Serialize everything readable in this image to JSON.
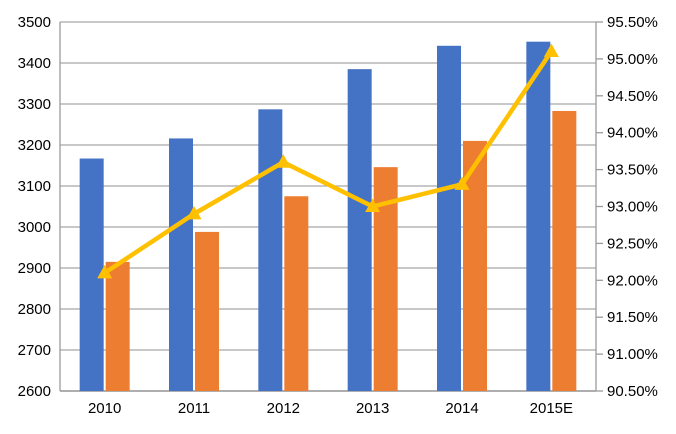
{
  "chart_data": {
    "type": "bar",
    "subtype": "combo-bar-line-dual-axis",
    "title": "",
    "xlabel": "",
    "ylabel": "",
    "legend": false,
    "grid": true,
    "background": "#FFFFFF",
    "gridline_color": "#A6A6A6",
    "axis_line_color": "#9B9B9B",
    "axis_text_color": "#000000",
    "categories": [
      "2010",
      "2011",
      "2012",
      "2013",
      "2014",
      "2015E"
    ],
    "series": [
      {
        "name": "blue-bars",
        "type": "bar",
        "axis": "left",
        "color": "#4472C4",
        "values": [
          3167,
          3216,
          3287,
          3385,
          3442,
          3452
        ]
      },
      {
        "name": "orange-bars",
        "type": "bar",
        "axis": "left",
        "color": "#ED7D31",
        "values": [
          2915,
          2988,
          3075,
          3146,
          3210,
          3283
        ]
      },
      {
        "name": "yellow-ratio-line",
        "type": "line",
        "axis": "right",
        "color": "#FFC000",
        "marker": "triangle-up",
        "values": [
          92.1,
          92.9,
          93.6,
          93.0,
          93.3,
          95.1
        ]
      }
    ],
    "left_axis": {
      "min": 2600,
      "max": 3500,
      "step": 100,
      "tick_labels": [
        "3500",
        "3400",
        "3300",
        "3200",
        "3100",
        "3000",
        "2900",
        "2800",
        "2700",
        "2600"
      ]
    },
    "right_axis": {
      "min": 90.5,
      "max": 95.5,
      "step": 0.5,
      "tick_labels": [
        "95.50%",
        "95.00%",
        "94.50%",
        "94.00%",
        "93.50%",
        "93.00%",
        "92.50%",
        "92.00%",
        "91.50%",
        "91.00%",
        "90.50%"
      ]
    }
  }
}
